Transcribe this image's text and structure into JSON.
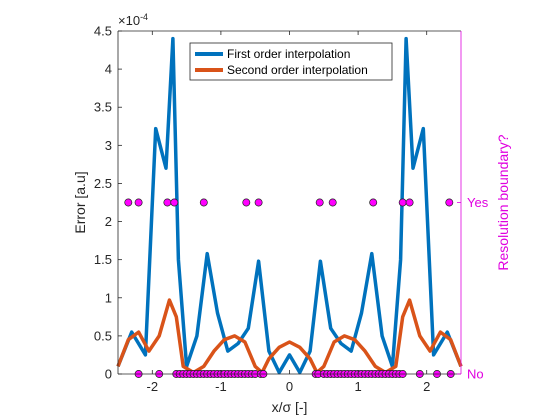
{
  "chart_data": {
    "type": "line",
    "xlabel": "x/σ [-]",
    "ylabel": "Error [a.u]",
    "y_exponent_label": "×10",
    "y_exponent_power": "-4",
    "right_ylabel": "Resolution boundary?",
    "xlim": [
      -2.5,
      2.5
    ],
    "ylim": [
      0,
      4.5
    ],
    "x_ticks": [
      -2,
      -1,
      0,
      1,
      2
    ],
    "x_tick_labels": [
      "-2",
      "-1",
      "0",
      "1",
      "2"
    ],
    "y_ticks": [
      0,
      0.5,
      1,
      1.5,
      2,
      2.5,
      3,
      3.5,
      4,
      4.5
    ],
    "y_tick_labels": [
      "0",
      "0.5",
      "1",
      "1.5",
      "2",
      "2.5",
      "3",
      "3.5",
      "4",
      "4.5"
    ],
    "right_y_tick_values": [
      0,
      2.25
    ],
    "right_y_tick_labels": [
      "No",
      "Yes"
    ],
    "legend_position": "top-center",
    "colors": {
      "first": "#0072bd",
      "second": "#d95319",
      "markers": "#ff00ff",
      "right_axis": "#e000e0"
    },
    "series": [
      {
        "name": "First order interpolation",
        "x": [
          -2.5,
          -2.3,
          -2.1,
          -1.95,
          -1.8,
          -1.7,
          -1.62,
          -1.5,
          -1.35,
          -1.2,
          -1.05,
          -0.9,
          -0.75,
          -0.6,
          -0.45,
          -0.3,
          -0.15,
          0,
          0.15,
          0.3,
          0.45,
          0.6,
          0.75,
          0.9,
          1.05,
          1.2,
          1.35,
          1.5,
          1.62,
          1.7,
          1.8,
          1.95,
          2.1,
          2.3,
          2.5
        ],
        "y": [
          0.1,
          0.55,
          0.25,
          3.22,
          2.7,
          4.4,
          1.5,
          0.1,
          0.5,
          1.58,
          0.8,
          0.3,
          0.4,
          0.6,
          1.48,
          0.3,
          0.02,
          0.25,
          0.02,
          0.3,
          1.48,
          0.6,
          0.4,
          0.3,
          0.8,
          1.58,
          0.5,
          0.1,
          1.5,
          4.4,
          2.7,
          3.22,
          0.25,
          0.55,
          0.1
        ]
      },
      {
        "name": "Second order interpolation",
        "x": [
          -2.5,
          -2.35,
          -2.2,
          -2.05,
          -1.9,
          -1.75,
          -1.65,
          -1.55,
          -1.4,
          -1.25,
          -1.1,
          -0.95,
          -0.8,
          -0.65,
          -0.5,
          -0.4,
          -0.3,
          -0.15,
          0,
          0.15,
          0.3,
          0.4,
          0.5,
          0.65,
          0.8,
          0.95,
          1.1,
          1.25,
          1.4,
          1.55,
          1.65,
          1.75,
          1.9,
          2.05,
          2.2,
          2.35,
          2.5
        ],
        "y": [
          0.1,
          0.45,
          0.55,
          0.3,
          0.5,
          0.97,
          0.75,
          0.1,
          0.02,
          0.1,
          0.3,
          0.45,
          0.5,
          0.42,
          0.1,
          0.02,
          0.2,
          0.35,
          0.42,
          0.35,
          0.2,
          0.02,
          0.1,
          0.42,
          0.5,
          0.45,
          0.3,
          0.1,
          0.02,
          0.1,
          0.75,
          0.97,
          0.5,
          0.3,
          0.55,
          0.45,
          0.1
        ]
      },
      {
        "name": "",
        "type": "scatter",
        "axis": "right",
        "x": [
          -2.35,
          -2.2,
          -1.78,
          -1.68,
          -1.25,
          -0.63,
          -0.45,
          0.44,
          0.63,
          1.22,
          1.65,
          1.75,
          2.33,
          -2.2,
          -1.9,
          -1.65,
          -1.6,
          -1.55,
          -1.5,
          -1.45,
          -1.4,
          -1.35,
          -1.3,
          -1.25,
          -1.2,
          -1.15,
          -1.1,
          -1.05,
          -1.0,
          -0.95,
          -0.9,
          -0.85,
          -0.8,
          -0.75,
          -0.7,
          -0.65,
          -0.6,
          -0.55,
          -0.5,
          -0.42,
          -0.38,
          0.38,
          0.42,
          0.5,
          0.55,
          0.6,
          0.65,
          0.7,
          0.75,
          0.8,
          0.85,
          0.9,
          0.95,
          1.0,
          1.05,
          1.1,
          1.15,
          1.2,
          1.25,
          1.3,
          1.35,
          1.4,
          1.45,
          1.5,
          1.55,
          1.6,
          1.65,
          1.9,
          2.15,
          2.35
        ],
        "y": [
          2.25,
          2.25,
          2.25,
          2.25,
          2.25,
          2.25,
          2.25,
          2.25,
          2.25,
          2.25,
          2.25,
          2.25,
          2.25,
          0,
          0,
          0,
          0,
          0,
          0,
          0,
          0,
          0,
          0,
          0,
          0,
          0,
          0,
          0,
          0,
          0,
          0,
          0,
          0,
          0,
          0,
          0,
          0,
          0,
          0,
          0,
          0,
          0,
          0,
          0,
          0,
          0,
          0,
          0,
          0,
          0,
          0,
          0,
          0,
          0,
          0,
          0,
          0,
          0,
          0,
          0,
          0,
          0,
          0,
          0,
          0,
          0,
          0,
          0,
          0,
          0
        ]
      }
    ]
  }
}
